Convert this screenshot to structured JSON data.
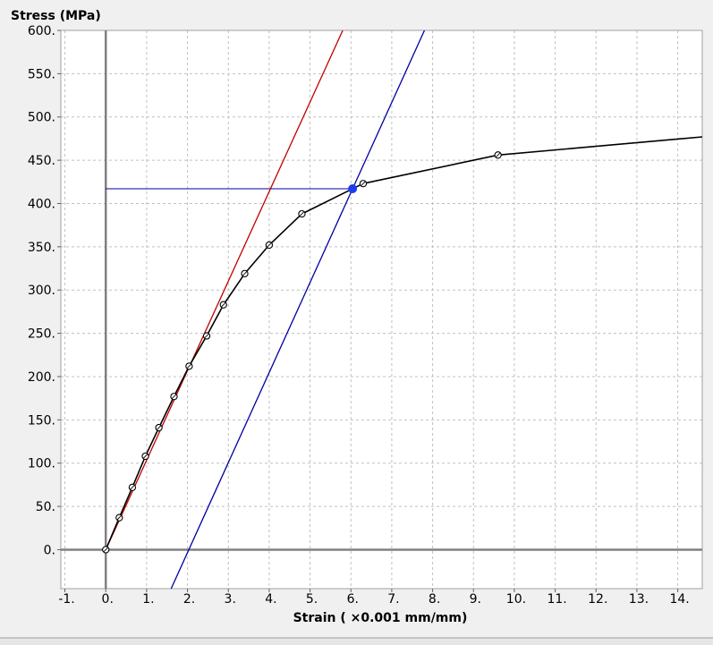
{
  "colors": {
    "background": "#f0f0f0",
    "plot_area": "#ffffff",
    "grid": "#c0c0c0",
    "axis": "#808080",
    "curve": "#000000",
    "elastic_line": "#c00000",
    "offset_line": "#0000a0",
    "yield_point": "#1c3cf0"
  },
  "chart_data": {
    "type": "line",
    "ylabel": "Stress (MPa)",
    "xlabel": "Strain ( ×0.001 mm/mm)",
    "xlim": [
      -1.1,
      14.6
    ],
    "ylim": [
      -45,
      600
    ],
    "x_ticks": [
      -1,
      0,
      1,
      2,
      3,
      4,
      5,
      6,
      7,
      8,
      9,
      10,
      11,
      12,
      13,
      14
    ],
    "x_tick_labels": [
      "-1.",
      "0.",
      "1.",
      "2.",
      "3.",
      "4.",
      "5.",
      "6.",
      "7.",
      "8.",
      "9.",
      "10.",
      "11.",
      "12.",
      "13.",
      "14."
    ],
    "y_ticks": [
      0,
      50,
      100,
      150,
      200,
      250,
      300,
      350,
      400,
      450,
      500,
      550,
      600
    ],
    "y_tick_labels": [
      "0.",
      "50.",
      "100.",
      "150.",
      "200.",
      "250.",
      "300.",
      "350.",
      "400.",
      "450.",
      "500.",
      "550.",
      "600."
    ],
    "grid": true,
    "series": [
      {
        "type": "line_with_markers",
        "x": [
          0.0,
          0.33,
          0.65,
          0.97,
          1.3,
          1.67,
          2.04,
          2.47,
          2.88,
          3.4,
          4.0,
          4.8,
          6.3,
          9.6,
          14.6
        ],
        "y": [
          0,
          37,
          72,
          108,
          141,
          177,
          212,
          247,
          283,
          319,
          352,
          388,
          423,
          456,
          477
        ],
        "markers_count": 14
      },
      {
        "type": "straight_line",
        "x": [
          0.0,
          5.8
        ],
        "y": [
          0,
          600
        ]
      },
      {
        "type": "straight_line",
        "x": [
          1.6,
          7.8
        ],
        "y": [
          -45,
          600
        ]
      },
      {
        "type": "horizontal_segment",
        "x": [
          0.0,
          6.04
        ],
        "y": [
          417,
          417
        ]
      }
    ],
    "highlight_point": {
      "x": 6.04,
      "y": 417
    }
  }
}
